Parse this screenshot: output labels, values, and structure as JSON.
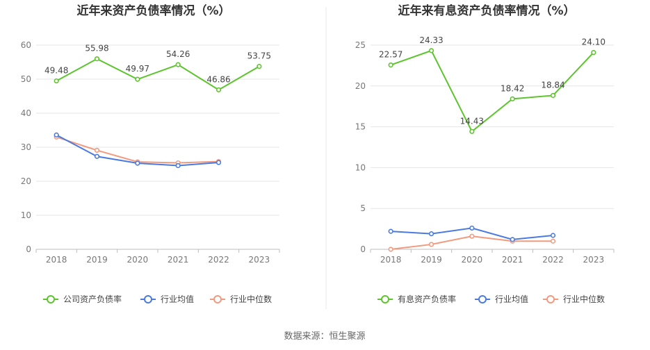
{
  "colors": {
    "company": "#5cc42c",
    "industry_avg": "#4a7ae0",
    "industry_median": "#f39a7e",
    "grid": "#e6e6e6",
    "axis": "#bdbdbd",
    "divider": "#e8e8e8"
  },
  "source": "数据来源：恒生聚源",
  "chart_data": [
    {
      "type": "line",
      "title": "近年来资产负债率情况（%）",
      "categories": [
        "2018",
        "2019",
        "2020",
        "2021",
        "2022",
        "2023"
      ],
      "ylim": [
        0,
        60
      ],
      "yticks": [
        "0",
        "10",
        "20",
        "30",
        "40",
        "50",
        "60"
      ],
      "grid": true,
      "legend_position": "bottom",
      "series": [
        {
          "name": "公司资产负债率",
          "color": "#5cc42c",
          "values": [
            49.48,
            55.98,
            49.97,
            54.26,
            46.86,
            53.75
          ],
          "labels": [
            "49.48",
            "55.98",
            "49.97",
            "54.26",
            "46.86",
            "53.75"
          ]
        },
        {
          "name": "行业均值",
          "color": "#4a7ae0",
          "values": [
            33.6,
            27.3,
            25.3,
            24.6,
            25.5,
            null
          ]
        },
        {
          "name": "行业中位数",
          "color": "#f39a7e",
          "values": [
            33.0,
            29.1,
            25.7,
            25.4,
            25.8,
            null
          ]
        }
      ]
    },
    {
      "type": "line",
      "title": "近年来有息资产负债率情况（%）",
      "categories": [
        "2018",
        "2019",
        "2020",
        "2021",
        "2022",
        "2023"
      ],
      "ylim": [
        0,
        25
      ],
      "yticks": [
        "0",
        "5",
        "10",
        "15",
        "20",
        "25"
      ],
      "grid": true,
      "legend_position": "bottom",
      "series": [
        {
          "name": "有息资产负债率",
          "color": "#5cc42c",
          "values": [
            22.57,
            24.33,
            14.43,
            18.42,
            18.84,
            24.1
          ],
          "labels": [
            "22.57",
            "24.33",
            "14.43",
            "18.42",
            "18.84",
            "24.10"
          ]
        },
        {
          "name": "行业均值",
          "color": "#4a7ae0",
          "values": [
            2.2,
            1.9,
            2.6,
            1.2,
            1.7,
            null
          ]
        },
        {
          "name": "行业中位数",
          "color": "#f39a7e",
          "values": [
            0.0,
            0.6,
            1.6,
            1.0,
            1.0,
            null
          ]
        }
      ]
    }
  ]
}
